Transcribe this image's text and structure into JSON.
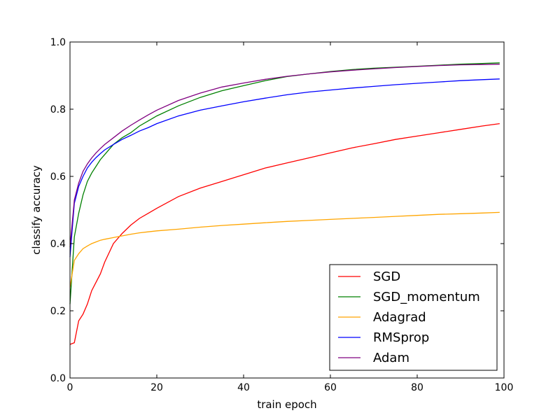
{
  "chart_data": {
    "type": "line",
    "title": "",
    "xlabel": "train epoch",
    "ylabel": "classify accuracy",
    "xlim": [
      0,
      100
    ],
    "ylim": [
      0.0,
      1.0
    ],
    "x_ticks": [
      "0",
      "20",
      "40",
      "60",
      "80",
      "100"
    ],
    "y_ticks": [
      "0.0",
      "0.2",
      "0.4",
      "0.6",
      "0.8",
      "1.0"
    ],
    "grid": false,
    "legend_position": "bottom-right",
    "x": [
      0,
      1,
      2,
      3,
      4,
      5,
      6,
      7,
      8,
      10,
      12,
      14,
      16,
      18,
      20,
      25,
      30,
      35,
      40,
      45,
      50,
      55,
      60,
      65,
      70,
      75,
      80,
      85,
      90,
      95,
      99
    ],
    "series": [
      {
        "name": "SGD",
        "color": "#ff0000",
        "values": [
          0.1,
          0.105,
          0.17,
          0.19,
          0.22,
          0.26,
          0.285,
          0.31,
          0.345,
          0.4,
          0.43,
          0.455,
          0.475,
          0.49,
          0.505,
          0.54,
          0.565,
          0.585,
          0.605,
          0.625,
          0.64,
          0.655,
          0.67,
          0.685,
          0.697,
          0.71,
          0.72,
          0.73,
          0.74,
          0.75,
          0.757
        ]
      },
      {
        "name": "SGD_momentum",
        "color": "#008000",
        "values": [
          0.22,
          0.42,
          0.49,
          0.545,
          0.585,
          0.61,
          0.63,
          0.65,
          0.665,
          0.695,
          0.715,
          0.73,
          0.75,
          0.765,
          0.78,
          0.81,
          0.835,
          0.855,
          0.87,
          0.885,
          0.897,
          0.905,
          0.912,
          0.918,
          0.922,
          0.925,
          0.928,
          0.931,
          0.934,
          0.936,
          0.938
        ]
      },
      {
        "name": "Adagrad",
        "color": "#ffa500",
        "values": [
          0.27,
          0.35,
          0.37,
          0.385,
          0.393,
          0.4,
          0.405,
          0.41,
          0.413,
          0.418,
          0.423,
          0.428,
          0.432,
          0.435,
          0.438,
          0.443,
          0.449,
          0.454,
          0.458,
          0.462,
          0.466,
          0.469,
          0.472,
          0.475,
          0.478,
          0.481,
          0.484,
          0.487,
          0.489,
          0.491,
          0.493
        ]
      },
      {
        "name": "RMSprop",
        "color": "#0000ff",
        "values": [
          0.36,
          0.52,
          0.57,
          0.6,
          0.625,
          0.642,
          0.656,
          0.668,
          0.679,
          0.695,
          0.71,
          0.722,
          0.735,
          0.745,
          0.757,
          0.78,
          0.797,
          0.81,
          0.822,
          0.833,
          0.843,
          0.851,
          0.857,
          0.863,
          0.868,
          0.873,
          0.877,
          0.881,
          0.885,
          0.888,
          0.89
        ]
      },
      {
        "name": "Adam",
        "color": "#800080",
        "values": [
          0.39,
          0.53,
          0.58,
          0.615,
          0.637,
          0.655,
          0.67,
          0.683,
          0.695,
          0.715,
          0.735,
          0.752,
          0.768,
          0.783,
          0.797,
          0.826,
          0.848,
          0.866,
          0.878,
          0.889,
          0.898,
          0.905,
          0.911,
          0.916,
          0.92,
          0.924,
          0.927,
          0.93,
          0.932,
          0.933,
          0.934
        ]
      }
    ]
  }
}
